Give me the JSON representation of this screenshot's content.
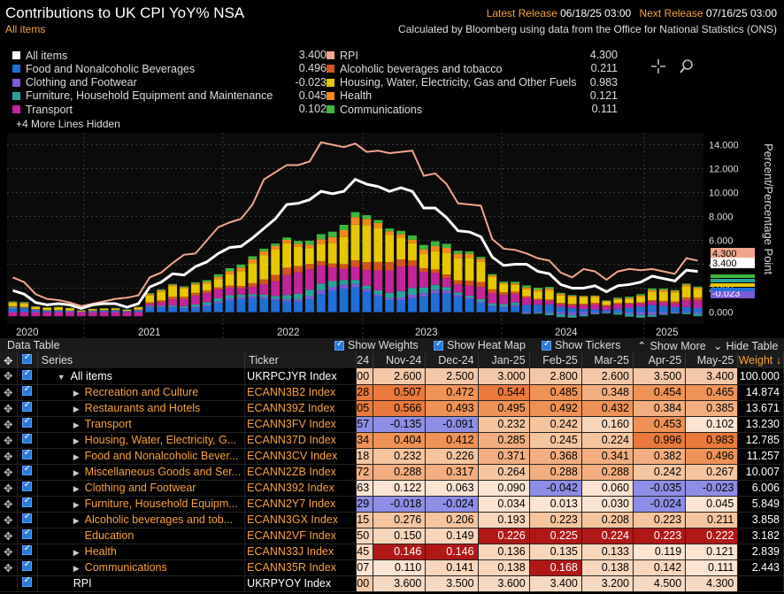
{
  "header": {
    "title": "Contributions to UK CPI YoY% NSA",
    "subtitle": "All items",
    "latest_label": "Latest Release",
    "latest_value": "06/18/25 03:00",
    "next_label": "Next Release",
    "next_value": "07/16/25 03:00",
    "note": "Calculated by Bloomberg using data from the Office for National Statistics (ONS)"
  },
  "legend": {
    "left": [
      {
        "label": "All items",
        "value": "3.400",
        "color": "#ffffff"
      },
      {
        "label": "Food and Nonalcoholic Beverages",
        "value": "0.496",
        "color": "#1f6fd6"
      },
      {
        "label": "Clothing and Footwear",
        "value": "-0.023",
        "color": "#7b5bd6"
      },
      {
        "label": "Furniture, Household Equipment and Maintenance",
        "value": "0.045",
        "color": "#2aa39a"
      },
      {
        "label": "Transport",
        "value": "0.102",
        "color": "#c2249a"
      }
    ],
    "right": [
      {
        "label": "RPI",
        "value": "4.300",
        "color": "#f2a58c"
      },
      {
        "label": "Alcoholic beverages and tobacco",
        "value": "0.211",
        "color": "#d2541d"
      },
      {
        "label": "Housing, Water, Electricity, Gas and Other Fuels",
        "value": "0.983",
        "color": "#e6c800"
      },
      {
        "label": "Health",
        "value": "0.121",
        "color": "#f08a1c"
      },
      {
        "label": "Communications",
        "value": "0.111",
        "color": "#3cb83c"
      }
    ],
    "hidden": "+4 More Lines Hidden"
  },
  "chart_data": {
    "type": "bar",
    "ylabel": "Percent/Percentage Point",
    "yticks": [
      "14.000",
      "12.000",
      "10.000",
      "8.000",
      "6.000",
      "4.000",
      "2.000",
      "0.000"
    ],
    "ylim": [
      -1,
      15
    ],
    "xticks": [
      "2020",
      "2021",
      "2022",
      "2023",
      "2024",
      "2025"
    ],
    "grid": true,
    "series": [
      {
        "name": "All items",
        "color": "#ffffff",
        "values": [
          1.8,
          1.5,
          0.8,
          0.6,
          0.7,
          0.6,
          0.3,
          0.6,
          0.7,
          0.7,
          0.4,
          0.7,
          2.1,
          2.5,
          3.2,
          3.1,
          3.8,
          4.2,
          4.9,
          5.4,
          5.5,
          6.2,
          7.0,
          7.8,
          9.0,
          9.1,
          9.4,
          10.1,
          9.9,
          10.1,
          11.1,
          10.7,
          10.5,
          10.1,
          10.4,
          10.1,
          8.7,
          8.7,
          7.9,
          6.8,
          6.7,
          6.3,
          4.6,
          3.9,
          4.0,
          4.0,
          3.4,
          3.2,
          2.3,
          2.0,
          2.0,
          2.2,
          1.7,
          2.2,
          2.3,
          2.5,
          3.0,
          2.8,
          2.6,
          3.5,
          3.4
        ]
      },
      {
        "name": "RPI",
        "color": "#f2a58c",
        "values": [
          2.9,
          2.5,
          1.5,
          1.1,
          1.0,
          0.8,
          0.5,
          0.7,
          0.9,
          1.1,
          1.2,
          1.4,
          2.9,
          3.3,
          4.1,
          4.8,
          4.9,
          6.0,
          7.1,
          7.5,
          7.8,
          9.0,
          11.1,
          11.7,
          12.3,
          12.3,
          12.6,
          14.2,
          14.0,
          13.8,
          14.1,
          13.4,
          13.5,
          13.3,
          13.4,
          13.5,
          11.4,
          11.6,
          10.7,
          9.1,
          9.0,
          8.9,
          6.1,
          5.3,
          5.2,
          4.9,
          4.5,
          4.3,
          3.3,
          2.9,
          3.6,
          3.4,
          2.7,
          3.4,
          3.6,
          3.5,
          3.6,
          3.4,
          3.2,
          4.5,
          4.3
        ]
      },
      {
        "name": "Food and Nonalcoholic Beverages",
        "color": "#1f6fd6"
      },
      {
        "name": "Clothing and Footwear",
        "color": "#7b5bd6"
      },
      {
        "name": "Furniture, Household Equipment and Maintenance",
        "color": "#2aa39a"
      },
      {
        "name": "Transport",
        "color": "#c2249a"
      },
      {
        "name": "Alcoholic beverages and tobacco",
        "color": "#d2541d"
      },
      {
        "name": "Housing, Water, Electricity, Gas and Other Fuels",
        "color": "#e6c800"
      },
      {
        "name": "Health",
        "color": "#f08a1c"
      },
      {
        "name": "Communications",
        "color": "#3cb83c"
      }
    ],
    "axis_labels": [
      {
        "text": "4.300",
        "color": "#f2a58c"
      },
      {
        "text": "3.400",
        "color": "#ffffff"
      },
      {
        "text": "-0.023",
        "color": "#7b5bd6"
      }
    ]
  },
  "data_table": {
    "title": "Data Table",
    "options": [
      "Show Weights",
      "Show Heat Map",
      "Show Tickers",
      "Show More",
      "Hide Table"
    ],
    "columns": [
      "Series",
      "Ticker",
      "24",
      "Nov-24",
      "Dec-24",
      "Jan-25",
      "Feb-25",
      "Mar-25",
      "Apr-25",
      "May-25",
      "Weight"
    ],
    "rows": [
      {
        "series": "All items",
        "ticker": "UKRPCJYR Index",
        "c0": "00",
        "vals": [
          "2.600",
          "2.500",
          "3.000",
          "2.800",
          "2.600",
          "3.500",
          "3.400"
        ],
        "weight": "100.000",
        "white": true,
        "expanded": true,
        "tri": true
      },
      {
        "series": "Recreation and Culture",
        "ticker": "ECANN3B2 Index",
        "c0": "28",
        "vals": [
          "0.507",
          "0.472",
          "0.544",
          "0.485",
          "0.348",
          "0.454",
          "0.465"
        ],
        "weight": "14.874",
        "tri": true
      },
      {
        "series": "Restaurants and Hotels",
        "ticker": "ECANN39Z Index",
        "c0": "05",
        "vals": [
          "0.566",
          "0.493",
          "0.495",
          "0.492",
          "0.432",
          "0.384",
          "0.385"
        ],
        "weight": "13.671",
        "tri": true
      },
      {
        "series": "Transport",
        "ticker": "ECANN3FV Index",
        "c0": "57",
        "vals": [
          "-0.135",
          "-0.091",
          "0.232",
          "0.242",
          "0.160",
          "0.453",
          "0.102"
        ],
        "weight": "13.230",
        "tri": true
      },
      {
        "series": "Housing, Water, Electricity, G...",
        "ticker": "ECANN37D Index",
        "c0": "34",
        "vals": [
          "0.404",
          "0.412",
          "0.285",
          "0.245",
          "0.224",
          "0.996",
          "0.983"
        ],
        "weight": "12.785",
        "tri": true
      },
      {
        "series": "Food and Nonalcoholic Bever...",
        "ticker": "ECANN3CV Index",
        "c0": "18",
        "vals": [
          "0.232",
          "0.226",
          "0.371",
          "0.368",
          "0.341",
          "0.382",
          "0.496"
        ],
        "weight": "11.257",
        "tri": true
      },
      {
        "series": "Miscellaneous Goods and Ser...",
        "ticker": "ECANN2ZB Index",
        "c0": "72",
        "vals": [
          "0.288",
          "0.317",
          "0.264",
          "0.288",
          "0.288",
          "0.242",
          "0.267"
        ],
        "weight": "10.007",
        "tri": true
      },
      {
        "series": "Clothing and Footwear",
        "ticker": "ECANN392 Index",
        "c0": "63",
        "vals": [
          "0.122",
          "0.063",
          "0.090",
          "-0.042",
          "0.060",
          "-0.035",
          "-0.023"
        ],
        "weight": "6.006",
        "tri": true
      },
      {
        "series": "Furniture, Household Equipm...",
        "ticker": "ECANN2Y7 Index",
        "c0": "29",
        "vals": [
          "-0.018",
          "-0.024",
          "0.034",
          "0.013",
          "0.030",
          "-0.024",
          "0.045"
        ],
        "weight": "5.849",
        "tri": true
      },
      {
        "series": "Alcoholic beverages and tob...",
        "ticker": "ECANN3GX Index",
        "c0": "15",
        "vals": [
          "0.276",
          "0.206",
          "0.193",
          "0.223",
          "0.208",
          "0.223",
          "0.211"
        ],
        "weight": "3.858",
        "tri": true
      },
      {
        "series": "Education",
        "ticker": "ECANN2VF Index",
        "c0": "50",
        "vals": [
          "0.150",
          "0.149",
          "0.226",
          "0.225",
          "0.224",
          "0.223",
          "0.222"
        ],
        "weight": "3.182",
        "tri": false
      },
      {
        "series": "Health",
        "ticker": "ECANN33J Index",
        "c0": "45",
        "vals": [
          "0.146",
          "0.146",
          "0.136",
          "0.135",
          "0.133",
          "0.119",
          "0.121"
        ],
        "weight": "2.839",
        "tri": true
      },
      {
        "series": "Communications",
        "ticker": "ECANN35R Index",
        "c0": "07",
        "vals": [
          "0.110",
          "0.141",
          "0.138",
          "0.168",
          "0.138",
          "0.142",
          "0.111"
        ],
        "weight": "2.443",
        "tri": true
      },
      {
        "series": "RPI",
        "ticker": "UKRPYOY Index",
        "c0": "00",
        "vals": [
          "3.600",
          "3.500",
          "3.600",
          "3.400",
          "3.200",
          "4.500",
          "4.300"
        ],
        "weight": "",
        "tri": false,
        "plain": true
      }
    ]
  }
}
